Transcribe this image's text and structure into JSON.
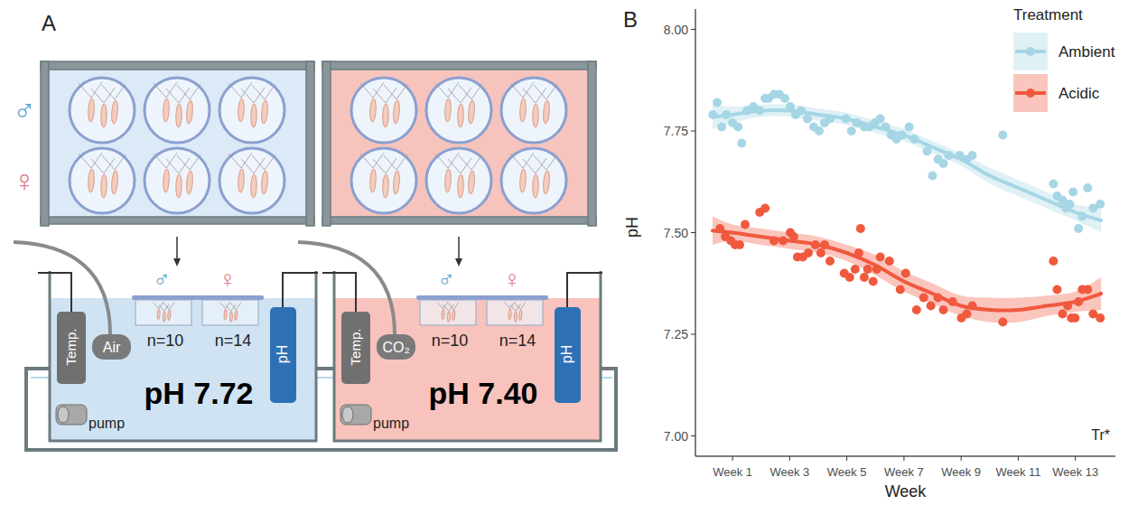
{
  "diagram": {
    "panel_label": "A",
    "row_symbols": [
      "♂",
      "♀"
    ],
    "tanks": [
      {
        "temp_label": "Temp.",
        "gas_label": "Air",
        "ph_probe_label": "pH",
        "groups": [
          {
            "symbol": "♂",
            "label": "n=10"
          },
          {
            "symbol": "♀",
            "label": "n=14"
          }
        ],
        "ph_label": "pH 7.72",
        "pump_label": "pump"
      },
      {
        "temp_label": "Temp.",
        "gas_label": "CO₂",
        "ph_probe_label": "pH",
        "groups": [
          {
            "symbol": "♂",
            "label": "n=10"
          },
          {
            "symbol": "♀",
            "label": "n=14"
          }
        ],
        "ph_label": "pH 7.40",
        "pump_label": "pump"
      }
    ]
  },
  "chart_data": {
    "type": "scatter",
    "panel_label": "B",
    "x_label": "Week",
    "y_label": "pH",
    "legend_title": "Treatment",
    "legend": "top-right",
    "annotation": "Tr*",
    "grid": false,
    "xlim": [
      -0.3,
      14.4
    ],
    "ylim": [
      6.95,
      8.05
    ],
    "xticks": [
      {
        "value": 1,
        "label": "Week 1"
      },
      {
        "value": 3,
        "label": "Week 3"
      },
      {
        "value": 5,
        "label": "Week 5"
      },
      {
        "value": 7,
        "label": "Week 7"
      },
      {
        "value": 9,
        "label": "Week 9"
      },
      {
        "value": 11,
        "label": "Week 11"
      },
      {
        "value": 13,
        "label": "Week 13"
      }
    ],
    "yticks": [
      {
        "value": 7,
        "label": "7.00"
      },
      {
        "value": 7.25,
        "label": "7.25"
      },
      {
        "value": 7.5,
        "label": "7.50"
      },
      {
        "value": 7.75,
        "label": "7.75"
      },
      {
        "value": 8,
        "label": "8.00"
      }
    ],
    "series": [
      {
        "name": "Ambient",
        "color": "#a6d6e5",
        "marker": "circle",
        "x": [
          0.31,
          0.46,
          0.62,
          0.78,
          1.0,
          1.19,
          1.32,
          1.5,
          1.73,
          1.95,
          2.14,
          2.26,
          2.45,
          2.64,
          2.83,
          3.02,
          3.21,
          3.4,
          3.62,
          3.84,
          4.03,
          4.22,
          4.41,
          4.97,
          5.16,
          5.35,
          5.61,
          5.79,
          5.98,
          6.17,
          6.36,
          6.55,
          6.74,
          6.93,
          7.18,
          7.37,
          7.81,
          8.0,
          8.19,
          8.38,
          8.57,
          8.95,
          9.2,
          9.39,
          10.46,
          12.23,
          12.36,
          12.55,
          12.67,
          12.8,
          12.92,
          13.11,
          13.24,
          13.43,
          13.62,
          13.87
        ],
        "values": [
          7.79,
          7.82,
          7.76,
          7.79,
          7.77,
          7.76,
          7.72,
          7.8,
          7.81,
          7.8,
          7.83,
          7.83,
          7.84,
          7.84,
          7.83,
          7.81,
          7.79,
          7.8,
          7.78,
          7.76,
          7.75,
          7.77,
          7.78,
          7.78,
          7.75,
          7.77,
          7.76,
          7.76,
          7.77,
          7.78,
          7.76,
          7.74,
          7.73,
          7.74,
          7.76,
          7.73,
          7.7,
          7.64,
          7.68,
          7.67,
          7.69,
          7.69,
          7.68,
          7.69,
          7.74,
          7.62,
          7.59,
          7.58,
          7.56,
          7.57,
          7.6,
          7.51,
          7.54,
          7.61,
          7.56,
          7.57
        ],
        "smooth": {
          "x": [
            0.3,
            1,
            2,
            3,
            4,
            5,
            6,
            7,
            8,
            9,
            10,
            11,
            12,
            13,
            13.9
          ],
          "values": [
            7.785,
            7.79,
            7.8,
            7.8,
            7.79,
            7.78,
            7.76,
            7.74,
            7.71,
            7.68,
            7.64,
            7.61,
            7.58,
            7.55,
            7.53
          ],
          "lower": [
            7.755,
            7.77,
            7.785,
            7.785,
            7.775,
            7.765,
            7.745,
            7.725,
            7.695,
            7.665,
            7.62,
            7.59,
            7.56,
            7.53,
            7.5
          ],
          "upper": [
            7.815,
            7.81,
            7.815,
            7.815,
            7.805,
            7.795,
            7.775,
            7.755,
            7.725,
            7.695,
            7.66,
            7.63,
            7.6,
            7.57,
            7.56
          ]
        }
      },
      {
        "name": "Acidic",
        "color": "#f0593e",
        "marker": "circle",
        "x": [
          0.56,
          0.75,
          0.94,
          1.09,
          1.25,
          1.44,
          1.95,
          2.14,
          2.45,
          2.77,
          3.02,
          3.14,
          3.27,
          3.46,
          3.65,
          3.9,
          4.09,
          4.22,
          4.41,
          4.91,
          5.1,
          5.29,
          5.42,
          5.48,
          5.61,
          5.73,
          5.92,
          6.05,
          6.17,
          6.49,
          6.87,
          7.06,
          7.44,
          7.69,
          7.94,
          8.19,
          8.38,
          8.7,
          9.01,
          9.2,
          9.39,
          10.46,
          12.23,
          12.36,
          12.55,
          12.73,
          12.86,
          12.99,
          13.11,
          13.24,
          13.43,
          13.62,
          13.87
        ],
        "values": [
          7.51,
          7.49,
          7.48,
          7.47,
          7.47,
          7.52,
          7.55,
          7.56,
          7.48,
          7.48,
          7.5,
          7.49,
          7.44,
          7.44,
          7.45,
          7.47,
          7.45,
          7.47,
          7.43,
          7.4,
          7.39,
          7.41,
          7.45,
          7.51,
          7.39,
          7.41,
          7.38,
          7.41,
          7.44,
          7.43,
          7.36,
          7.4,
          7.31,
          7.34,
          7.32,
          7.34,
          7.31,
          7.33,
          7.29,
          7.3,
          7.32,
          7.28,
          7.43,
          7.36,
          7.3,
          7.32,
          7.29,
          7.29,
          7.33,
          7.36,
          7.36,
          7.3,
          7.29
        ],
        "smooth": {
          "x": [
            0.3,
            1,
            2,
            3,
            4,
            5,
            6,
            7,
            8,
            9,
            10,
            11,
            12,
            13,
            13.9
          ],
          "values": [
            7.505,
            7.5,
            7.49,
            7.48,
            7.47,
            7.45,
            7.42,
            7.38,
            7.35,
            7.32,
            7.31,
            7.31,
            7.32,
            7.33,
            7.35
          ],
          "lower": [
            7.47,
            7.48,
            7.47,
            7.46,
            7.45,
            7.43,
            7.395,
            7.355,
            7.325,
            7.295,
            7.28,
            7.28,
            7.295,
            7.305,
            7.31
          ],
          "upper": [
            7.54,
            7.52,
            7.51,
            7.5,
            7.49,
            7.47,
            7.445,
            7.405,
            7.375,
            7.345,
            7.34,
            7.34,
            7.345,
            7.355,
            7.39
          ]
        }
      }
    ]
  }
}
